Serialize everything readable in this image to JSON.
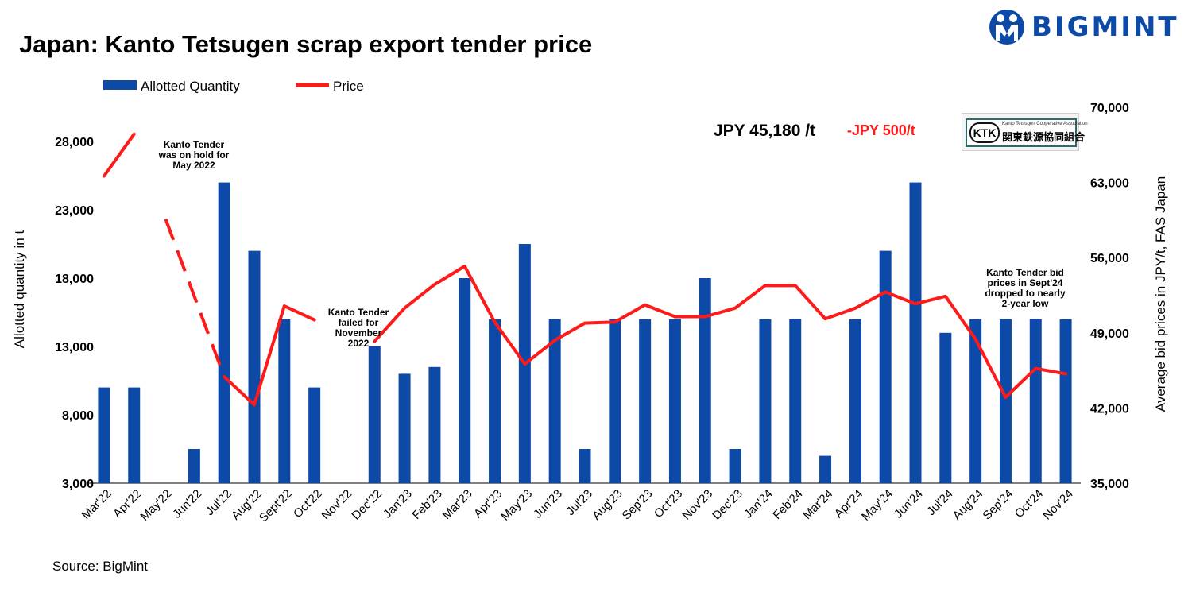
{
  "header": {
    "title": "Japan: Kanto Tetsugen scrap export tender price",
    "logo_text": "BIGMINT",
    "source": "Source: BigMint"
  },
  "highlight": {
    "price_text": "JPY 45,180 /t",
    "change_text": "-JPY 500/t",
    "badge_letters": "KTK",
    "badge_english": "Kanto Tetsugen Cooperative Association",
    "badge_japanese": "関東鉄源協同組合"
  },
  "colors": {
    "bar": "#0d4aa8",
    "line": "#ff1a1a",
    "change": "#ff1a1a",
    "logo": "#0d4aa8"
  },
  "chart_data": {
    "type": "bar+line",
    "categories": [
      "Mar'22",
      "Apr'22",
      "May'22",
      "Jun'22",
      "Jul'22",
      "Aug'22",
      "Sept'22",
      "Oct'22",
      "Nov'22",
      "Dec'22",
      "Jan'23",
      "Feb'23",
      "Mar'23",
      "Apr'23",
      "May'23",
      "Jun'23",
      "Jul'23",
      "Aug'23",
      "Sep'23",
      "Oct'23",
      "Nov'23",
      "Dec'23",
      "Jan'24",
      "Feb'24",
      "Mar'24",
      "Apr'24",
      "May'24",
      "Jun'24",
      "Jul'24",
      "Aug'24",
      "Sep'24",
      "Oct'24",
      "Nov'24"
    ],
    "series": [
      {
        "name": "Allotted Quantity",
        "kind": "bar",
        "axis": "left",
        "values": [
          10000,
          10000,
          null,
          5500,
          25000,
          20000,
          15000,
          10000,
          null,
          13000,
          11000,
          11500,
          18000,
          15000,
          20500,
          15000,
          5500,
          15000,
          15000,
          15000,
          18000,
          5500,
          15000,
          15000,
          5000,
          15000,
          20000,
          25000,
          14000,
          15000,
          15000,
          15000,
          15000
        ]
      },
      {
        "name": "Price",
        "kind": "line",
        "axis": "right",
        "values": [
          63600,
          67500,
          null,
          null,
          44900,
          42300,
          51500,
          50200,
          null,
          48200,
          51300,
          53500,
          55200,
          50000,
          46100,
          48300,
          49900,
          50000,
          51600,
          50500,
          50500,
          51300,
          53400,
          53400,
          50300,
          51300,
          52800,
          51700,
          52400,
          48400,
          43000,
          45680,
          45180
        ],
        "dashed_segment": [
          "Apr'22",
          "Jul'22"
        ]
      }
    ],
    "y_left": {
      "label": "Allotted quantity in t",
      "min": 3000,
      "max": 28000,
      "ticks": [
        "3,000",
        "8,000",
        "13,000",
        "18,000",
        "23,000",
        "28,000"
      ]
    },
    "y_right": {
      "label": "Average bid prices in JPY/t, FAS Japan",
      "min": 35000,
      "max": 70000,
      "ticks": [
        "35,000",
        "42,000",
        "49,000",
        "56,000",
        "63,000",
        "70,000"
      ]
    },
    "legend": {
      "position": "top-left",
      "bar_label": "Allotted Quantity",
      "line_label": "Price"
    },
    "annotations": {
      "may22": [
        "Kanto Tender",
        "was on hold for",
        "May 2022"
      ],
      "nov22": [
        "Kanto Tender",
        "failed  for",
        "November",
        "2022"
      ],
      "sep24": [
        "Kanto Tender bid",
        "prices in Sept'24",
        "dropped to nearly",
        "2-year low"
      ]
    },
    "grid": false
  }
}
